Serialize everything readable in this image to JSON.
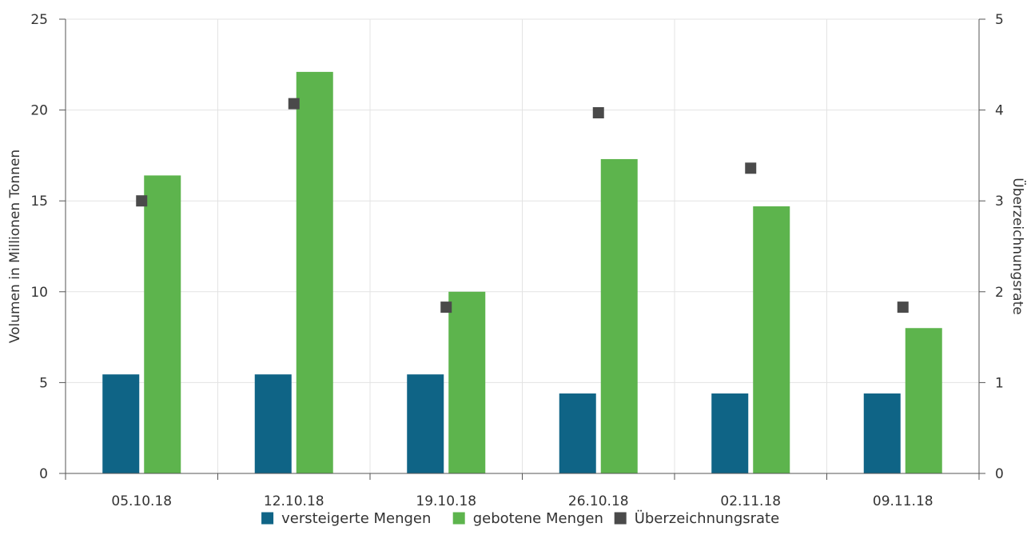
{
  "chart_data": {
    "type": "bar",
    "categories": [
      "05.10.18",
      "12.10.18",
      "19.10.18",
      "26.10.18",
      "02.11.18",
      "09.11.18"
    ],
    "series": [
      {
        "name": "versteigerte Mengen",
        "type": "bar",
        "axis": "left",
        "color": "#0f6486",
        "values": [
          5.45,
          5.45,
          5.45,
          4.4,
          4.4,
          4.4
        ]
      },
      {
        "name": "gebotene Mengen",
        "type": "bar",
        "axis": "left",
        "color": "#5db44d",
        "values": [
          16.4,
          22.1,
          10.0,
          17.3,
          14.7,
          8.0
        ]
      },
      {
        "name": "Überzeichnungsrate",
        "type": "scatter",
        "axis": "right",
        "color": "#4a4a4a",
        "values": [
          3.0,
          4.07,
          1.83,
          3.97,
          3.36,
          1.83
        ]
      }
    ],
    "ylabel": "Volumen in Millionen Tonnen",
    "ylabel_right": "Überzeichnungsrate",
    "ylim": [
      0,
      25
    ],
    "ylim_right": [
      0,
      5
    ],
    "yticks": [
      "0",
      "5",
      "10",
      "15",
      "20",
      "25"
    ],
    "yticks_right": [
      "0",
      "1",
      "2",
      "3",
      "4",
      "5"
    ],
    "grid": true,
    "legend_position": "bottom"
  }
}
